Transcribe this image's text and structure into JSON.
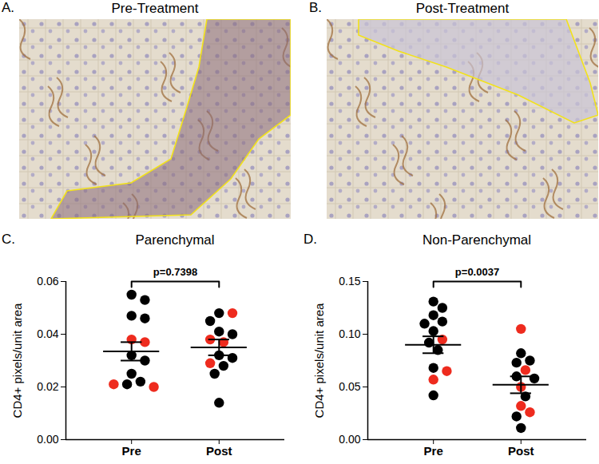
{
  "images": [
    {
      "panel": "A.",
      "title": "Pre-Treatment"
    },
    {
      "panel": "B.",
      "title": "Post-Treatment"
    }
  ],
  "chart_data": [
    {
      "type": "scatter",
      "panel": "C.",
      "title": "Parenchymal",
      "y_label": "CD4+ pixels/unit area",
      "categories": [
        "Pre",
        "Post"
      ],
      "values": [
        [
          0.055,
          0.053,
          0.047,
          0.046,
          0.038,
          0.037,
          0.032,
          0.03,
          0.025,
          0.022,
          0.021,
          0.021,
          0.02
        ],
        [
          0.048,
          0.048,
          0.045,
          0.041,
          0.04,
          0.038,
          0.037,
          0.032,
          0.031,
          0.029,
          0.028,
          0.025,
          0.014
        ]
      ],
      "colors": [
        [
          "#000000",
          "#000000",
          "#000000",
          "#000000",
          "#ee2b1e",
          "#ee2b1e",
          "#000000",
          "#000000",
          "#000000",
          "#000000",
          "#000000",
          "#ee2b1e",
          "#ee2b1e"
        ],
        [
          "#000000",
          "#ee2b1e",
          "#000000",
          "#000000",
          "#000000",
          "#ee2b1e",
          "#ee2b1e",
          "#000000",
          "#000000",
          "#ee2b1e",
          "#000000",
          "#000000",
          "#000000"
        ]
      ],
      "mean": [
        0.0335,
        0.035
      ],
      "sem": [
        0.0035,
        0.003
      ],
      "annotations": [
        {
          "text": "p=0.7398",
          "from": "Pre",
          "to": "Post"
        }
      ],
      "ylim": [
        0,
        0.06
      ],
      "yticks": [
        {
          "value": 0,
          "label": "0.00"
        },
        {
          "value": 0.02,
          "label": "0.02"
        },
        {
          "value": 0.04,
          "label": "0.04"
        },
        {
          "value": 0.06,
          "label": "0.06"
        }
      ]
    },
    {
      "type": "scatter",
      "panel": "D.",
      "title": "Non-Parenchymal",
      "y_label": "CD4+ pixels/unit area",
      "categories": [
        "Pre",
        "Post"
      ],
      "values": [
        [
          0.131,
          0.125,
          0.118,
          0.112,
          0.11,
          0.103,
          0.095,
          0.092,
          0.085,
          0.068,
          0.065,
          0.057,
          0.042
        ],
        [
          0.105,
          0.082,
          0.075,
          0.073,
          0.066,
          0.06,
          0.058,
          0.05,
          0.041,
          0.032,
          0.026,
          0.022,
          0.011
        ]
      ],
      "colors": [
        [
          "#000000",
          "#000000",
          "#000000",
          "#000000",
          "#000000",
          "#000000",
          "#ee2b1e",
          "#000000",
          "#000000",
          "#000000",
          "#ee2b1e",
          "#ee2b1e",
          "#000000"
        ],
        [
          "#ee2b1e",
          "#000000",
          "#000000",
          "#000000",
          "#ee2b1e",
          "#000000",
          "#000000",
          "#ee2b1e",
          "#000000",
          "#ee2b1e",
          "#ee2b1e",
          "#000000",
          "#000000"
        ]
      ],
      "mean": [
        0.09,
        0.052
      ],
      "sem": [
        0.008,
        0.008
      ],
      "annotations": [
        {
          "text": "p=0.0037",
          "from": "Pre",
          "to": "Post"
        }
      ],
      "ylim": [
        0,
        0.15
      ],
      "yticks": [
        {
          "value": 0,
          "label": "0.00"
        },
        {
          "value": 0.05,
          "label": "0.05"
        },
        {
          "value": 0.1,
          "label": "0.10"
        },
        {
          "value": 0.15,
          "label": "0.15"
        }
      ]
    }
  ]
}
